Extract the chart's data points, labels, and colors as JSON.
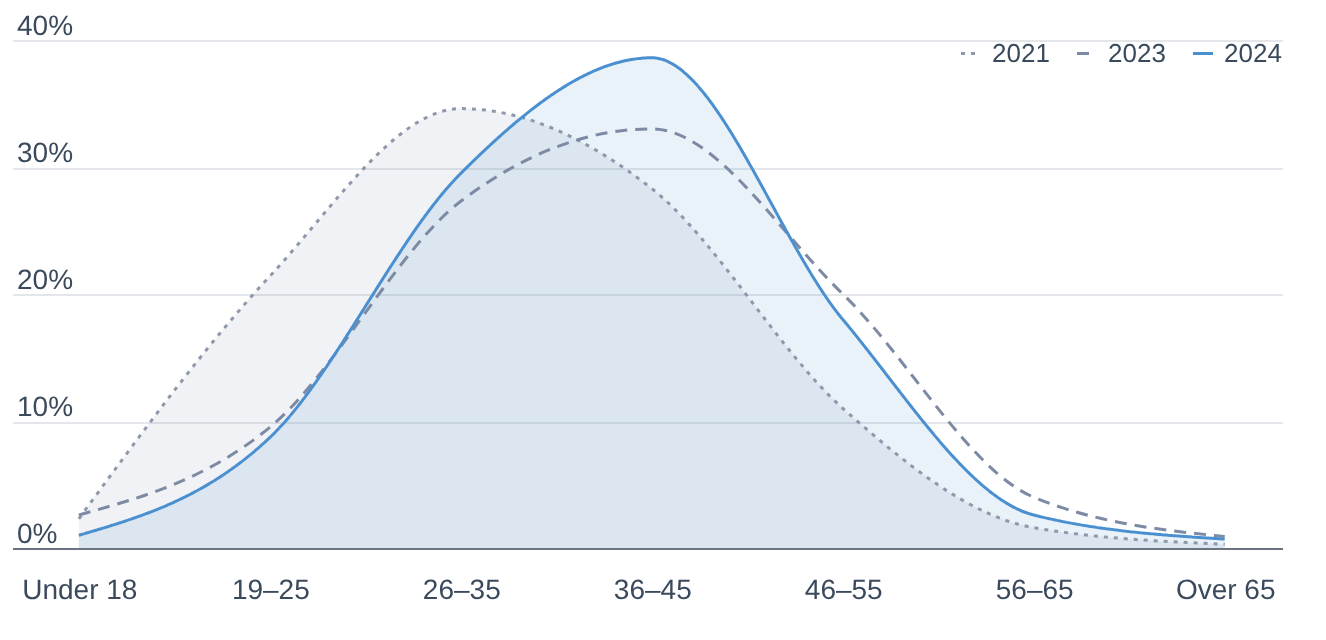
{
  "chart_data": {
    "type": "line",
    "categories": [
      "Under 18",
      "19–25",
      "26–35",
      "36–45",
      "46–55",
      "56–65",
      "Over 65"
    ],
    "series": [
      {
        "name": "2021",
        "type": "area",
        "color": "#8e98aa",
        "line_style": "dotted",
        "values": [
          2.3,
          21.4,
          34.6,
          28.3,
          11,
          1.6,
          0.3
        ]
      },
      {
        "name": "2023",
        "type": "line",
        "color": "#7d8aa3",
        "line_style": "dashed",
        "values": [
          2.6,
          9.5,
          27.3,
          33,
          20,
          4,
          0.9
        ]
      },
      {
        "name": "2024",
        "type": "area",
        "color": "#4a90d0",
        "line_style": "solid",
        "values": [
          1,
          8.7,
          29.5,
          38.6,
          18,
          2.6,
          0.7
        ]
      }
    ],
    "ylim": [
      0,
      40
    ],
    "yticks": [
      {
        "value": 0,
        "label": "0%"
      },
      {
        "value": 10,
        "label": "10%"
      },
      {
        "value": 20,
        "label": "20%"
      },
      {
        "value": 30,
        "label": "30%"
      },
      {
        "value": 40,
        "label": "40%"
      }
    ],
    "grid": "y",
    "legend": "top right",
    "marker": "none"
  }
}
